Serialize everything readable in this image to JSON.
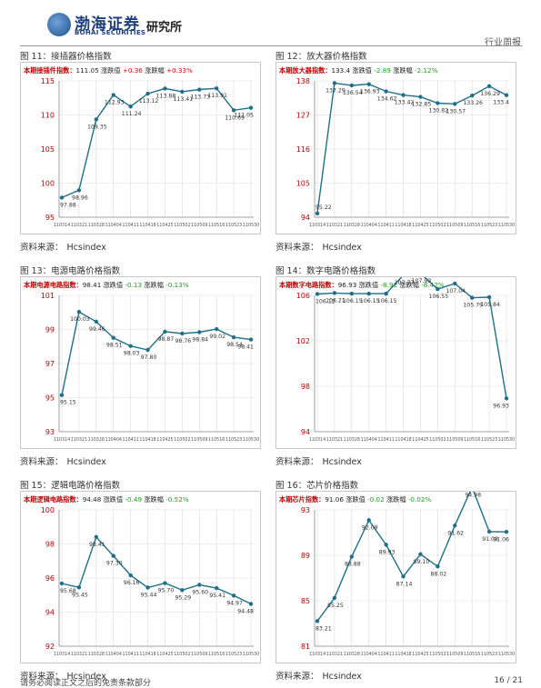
{
  "header": {
    "logo_cn": "渤海证券",
    "logo_en": "BOHAI SECURITIES",
    "institute": "研究所",
    "report_type": "行业周报"
  },
  "footer": {
    "disclaimer": "请务必阅读正文之后的免责条款部分",
    "page": "16 / 21"
  },
  "colors": {
    "line": "#1f6f8b",
    "grid": "#d9d9d9",
    "axis_text": "#c00000",
    "label_red": "#c00000",
    "up": "#e00000",
    "down": "#1e9e1e"
  },
  "panels": [
    {
      "fig_title": "图 11：接插器价格指数",
      "source_label": "资料来源：",
      "source_value": "Hcsindex",
      "legend": {
        "name": "本期接插件指数",
        "value": "111.05",
        "chg_label": "涨跌值",
        "chg": "+0.36",
        "pct_label": "涨跌幅",
        "pct": "+0.33%",
        "dir": "up"
      }
    },
    {
      "fig_title": "图 12：放大器价格指数",
      "source_label": "资料来源：",
      "source_value": "Hcsindex",
      "legend": {
        "name": "本期放大器指数",
        "value": "133.4",
        "chg_label": "涨跌值",
        "chg": "-2.89",
        "pct_label": "涨跌幅",
        "pct": "-2.12%",
        "dir": "down"
      }
    },
    {
      "fig_title": "图 13：电源电路价格指数",
      "source_label": "资料来源：",
      "source_value": "Hcsindex",
      "legend": {
        "name": "本期电源电路指数",
        "value": "98.41",
        "chg_label": "涨跌值",
        "chg": "-0.13",
        "pct_label": "涨跌幅",
        "pct": "-0.13%",
        "dir": "down"
      }
    },
    {
      "fig_title": "图 14：数字电路价格指数",
      "source_label": "资料来源：",
      "source_value": "Hcsindex",
      "legend": {
        "name": "本期数字电路指数",
        "value": "96.93",
        "chg_label": "涨跌值",
        "chg": "-8.91",
        "pct_label": "涨跌幅",
        "pct": "-8.42%",
        "dir": "down"
      }
    },
    {
      "fig_title": "图 15：逻辑电路价格指数",
      "source_label": "资料来源：",
      "source_value": "Hcsindex",
      "legend": {
        "name": "本期逻辑电路指数",
        "value": "94.48",
        "chg_label": "涨跌值",
        "chg": "-0.49",
        "pct_label": "涨跌幅",
        "pct": "-0.52%",
        "dir": "down"
      }
    },
    {
      "fig_title": "图 16：芯片价格指数",
      "source_label": "资料来源：",
      "source_value": "Hcsindex",
      "legend": {
        "name": "本期芯片指数",
        "value": "91.06",
        "chg_label": "涨跌值",
        "chg": "-0.02",
        "pct_label": "涨跌幅",
        "pct": "-0.02%",
        "dir": "down"
      }
    }
  ],
  "chart_data": [
    {
      "type": "line",
      "title": "接插器价格指数",
      "x": [
        "110314",
        "110321",
        "110328",
        "110404",
        "110411",
        "110418",
        "110425",
        "110502",
        "110509",
        "110516",
        "110523",
        "110530"
      ],
      "values": [
        97.88,
        98.96,
        109.35,
        112.93,
        111.24,
        113.12,
        113.88,
        113.41,
        113.73,
        113.91,
        110.69,
        111.05
      ],
      "labels": [
        "97.88",
        "98.96",
        "109.35",
        "112.93",
        "111.24",
        "113.12",
        "113.88",
        "113.41",
        "113.73",
        "113.91",
        "110.69",
        "111.05"
      ],
      "ylim": [
        95,
        115
      ],
      "yticks": [
        95,
        100,
        105,
        110,
        115
      ],
      "grid": true
    },
    {
      "type": "line",
      "title": "放大器价格指数",
      "x": [
        "110314",
        "110321",
        "110328",
        "110404",
        "110411",
        "110418",
        "110425",
        "110502",
        "110509",
        "110516",
        "110523",
        "110530"
      ],
      "values": [
        95.22,
        137.29,
        136.54,
        136.93,
        134.62,
        133.42,
        132.85,
        130.82,
        130.57,
        133.26,
        136.29,
        133.4
      ],
      "labels": [
        "95.22",
        "137.29",
        "136.54",
        "136.93",
        "134.62",
        "133.42",
        "132.85",
        "130.82",
        "130.57",
        "133.26",
        "136.29",
        "133.4"
      ],
      "ylim": [
        94,
        138
      ],
      "yticks": [
        94,
        105,
        116,
        127,
        138
      ],
      "grid": true
    },
    {
      "type": "line",
      "title": "电源电路价格指数",
      "x": [
        "110314",
        "110321",
        "110328",
        "110404",
        "110411",
        "110418",
        "110425",
        "110502",
        "110509",
        "110516",
        "110523",
        "110530"
      ],
      "values": [
        95.15,
        100.03,
        99.46,
        98.51,
        98.03,
        97.8,
        98.87,
        98.76,
        98.84,
        99.02,
        98.54,
        98.41
      ],
      "labels": [
        "95.15",
        "100.03",
        "99.46",
        "98.51",
        "98.03",
        "97.80",
        "98.87",
        "98.76",
        "98.84",
        "99.02",
        "98.54",
        "98.41"
      ],
      "ylim": [
        93,
        101
      ],
      "yticks": [
        93,
        95,
        97,
        99,
        101
      ],
      "grid": true
    },
    {
      "type": "line",
      "title": "数字电路价格指数",
      "x": [
        "110314",
        "110321",
        "110328",
        "110404",
        "110411",
        "110418",
        "110425",
        "110502",
        "110509",
        "110516",
        "110523",
        "110530"
      ],
      "values": [
        106.12,
        106.21,
        106.15,
        106.15,
        106.15,
        107.77,
        107.93,
        106.55,
        107.04,
        105.79,
        105.84,
        96.93
      ],
      "labels": [
        "106.12",
        "106.21",
        "106.15",
        "106.15",
        "106.15",
        "107.77",
        "107.93",
        "106.55",
        "107.04",
        "105.79",
        "105.84",
        "96.93"
      ],
      "ylim": [
        94,
        106
      ],
      "yticks": [
        94,
        98,
        102,
        106
      ],
      "grid": true
    },
    {
      "type": "line",
      "title": "逻辑电路价格指数",
      "x": [
        "110314",
        "110321",
        "110328",
        "110404",
        "110411",
        "110418",
        "110425",
        "110502",
        "110509",
        "110516",
        "110523",
        "110530"
      ],
      "values": [
        95.68,
        95.45,
        98.41,
        97.3,
        96.16,
        95.44,
        95.7,
        95.29,
        95.6,
        95.41,
        94.97,
        94.48
      ],
      "labels": [
        "95.68",
        "95.45",
        "98.41",
        "97.30",
        "96.16",
        "95.44",
        "95.70",
        "95.29",
        "95.60",
        "95.41",
        "94.97",
        "94.48"
      ],
      "ylim": [
        92,
        100
      ],
      "yticks": [
        92,
        94,
        96,
        98,
        100
      ],
      "grid": true
    },
    {
      "type": "line",
      "title": "芯片价格指数",
      "x": [
        "110314",
        "110321",
        "110328",
        "110404",
        "110411",
        "110418",
        "110425",
        "110502",
        "110509",
        "110516",
        "110523",
        "110530"
      ],
      "values": [
        83.21,
        85.25,
        88.88,
        92.09,
        89.93,
        87.14,
        89.1,
        88.02,
        91.62,
        94.98,
        91.08,
        91.06
      ],
      "labels": [
        "83.21",
        "85.25",
        "88.88",
        "92.09",
        "89.93",
        "87.14",
        "89.10",
        "88.02",
        "91.62",
        "94.98",
        "91.08",
        "91.06"
      ],
      "ylim": [
        81,
        93
      ],
      "yticks": [
        81,
        85,
        89,
        93
      ],
      "grid": true
    }
  ]
}
